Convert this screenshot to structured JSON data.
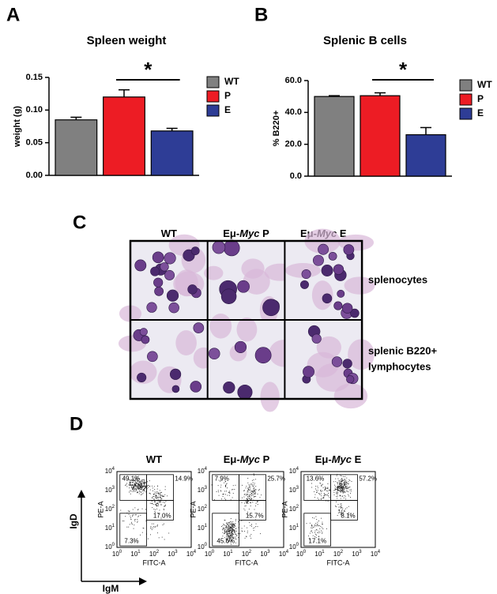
{
  "chart_data": [
    {
      "type": "bar",
      "panel_label": "A",
      "title": "Spleen weight",
      "y_label": "weight (g)",
      "ylim": [
        0,
        0.15
      ],
      "yticks": [
        {
          "value": 0,
          "label": "0.00"
        },
        {
          "value": 0.05,
          "label": "0.05"
        },
        {
          "value": 0.1,
          "label": "0.10"
        },
        {
          "value": 0.15,
          "label": "0.15"
        }
      ],
      "series": [
        {
          "name": "WT",
          "color": "#808080",
          "values": [
            0.085
          ],
          "errors": [
            0.004
          ]
        },
        {
          "name": "P",
          "color": "#ed1c24",
          "values": [
            0.12
          ],
          "errors": [
            0.011
          ]
        },
        {
          "name": "E",
          "color": "#2e3d96",
          "values": [
            0.068
          ],
          "errors": [
            0.004
          ]
        }
      ],
      "annotation": "*"
    },
    {
      "type": "bar",
      "panel_label": "B",
      "title": "Splenic B cells",
      "y_label": "% B220+",
      "ylim": [
        0,
        60
      ],
      "yticks": [
        {
          "value": 0,
          "label": "0.0"
        },
        {
          "value": 20,
          "label": "20.0"
        },
        {
          "value": 40,
          "label": "40.0"
        },
        {
          "value": 60,
          "label": "60.0"
        }
      ],
      "series": [
        {
          "name": "WT",
          "color": "#808080",
          "values": [
            50
          ],
          "errors": [
            0.5
          ]
        },
        {
          "name": "P",
          "color": "#ed1c24",
          "values": [
            50.5
          ],
          "errors": [
            1.8
          ]
        },
        {
          "name": "E",
          "color": "#2e3d96",
          "values": [
            26
          ],
          "errors": [
            4.5
          ]
        }
      ],
      "annotation": "*"
    }
  ],
  "panel_c": {
    "panel_label": "C",
    "columns": [
      {
        "parts": [
          "WT"
        ]
      },
      {
        "parts": [
          "Eμ-",
          "Myc",
          " P"
        ]
      },
      {
        "parts": [
          "Eμ-",
          "Myc",
          " E"
        ]
      }
    ],
    "italic_part": 1,
    "rows": [
      {
        "lines": [
          "splenocytes"
        ]
      },
      {
        "lines": [
          "splenic B220+",
          "lymphocytes"
        ]
      }
    ]
  },
  "panel_d": {
    "panel_label": "D",
    "y_axis": "IgD",
    "x_axis": "IgM",
    "plot_y_label": "PE-A",
    "plot_x_label": "FITC-A",
    "tick_base": "10",
    "tick_exponents": [
      "0",
      "1",
      "2",
      "3",
      "4"
    ],
    "plots": [
      {
        "parts": [
          "WT"
        ],
        "top_left": "49.1%",
        "top_right": "14.9%",
        "middle_right": "17.0%",
        "bottom_left": "7.3%"
      },
      {
        "parts": [
          "Eμ-",
          "Myc",
          " P"
        ],
        "top_left": "7.9%",
        "top_right": "25.7%",
        "middle_right": "15.7%",
        "bottom_left": "45.6%"
      },
      {
        "parts": [
          "Eμ-",
          "Myc",
          " E"
        ],
        "top_left": "13.6%",
        "top_right": "57.2%",
        "middle_right": "8.1%",
        "bottom_left": "17.1%"
      }
    ]
  }
}
